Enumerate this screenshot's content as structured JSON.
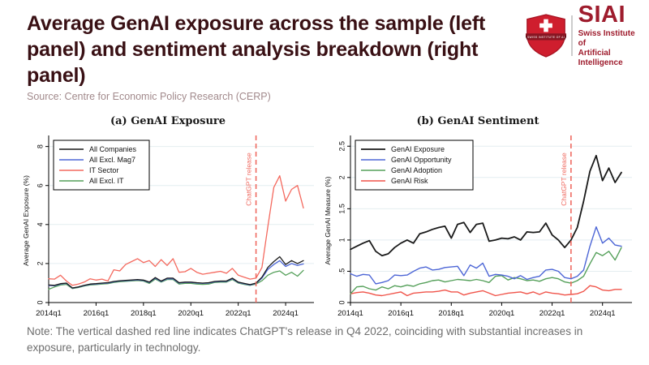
{
  "header": {
    "title": "Average GenAI exposure across the sample (left panel) and sentiment analysis breakdown (right panel)",
    "source": "Source: Centre for Economic Policy Research (CERP)"
  },
  "logo": {
    "acronym": "SIAI",
    "name_line1": "Swiss Institute of",
    "name_line2": "Artificial Intelligence",
    "banner_text": "SWISS INSTITUTE OF AI",
    "shield_color": "#cf1e2e",
    "shield_dark": "#a81423",
    "banner_color": "#871622",
    "text_color": "#9e1c2d"
  },
  "note": "Note:  The vertical dashed red line indicates ChatGPT's release in Q4 2022, coinciding with substantial increases in exposure, particularly in technology.",
  "chart_data": [
    {
      "type": "line",
      "title": "(a) GenAI Exposure",
      "ylabel": "Average GenAI Exposure (%)",
      "ylim": [
        0,
        8.4
      ],
      "grid": true,
      "legend_position": "top-left",
      "n_points": 44,
      "x_start": "2014q1",
      "x_end": "2024q4",
      "x_tick_labels": [
        "2014q1",
        "2016q1",
        "2018q1",
        "2020q1",
        "2022q1",
        "2024q1"
      ],
      "x_tick_indices": [
        0,
        8,
        16,
        24,
        32,
        40
      ],
      "y_ticks": [
        {
          "value": 0,
          "label": "0"
        },
        {
          "value": 2,
          "label": "2"
        },
        {
          "value": 4,
          "label": "4"
        },
        {
          "value": 6,
          "label": "6"
        },
        {
          "value": 8,
          "label": "8"
        }
      ],
      "vline": {
        "index": 35,
        "quarter": "2022q4",
        "label": "ChatGPT release",
        "color": "#ef6a60"
      },
      "series": [
        {
          "name": "All Companies",
          "color": "#1a1a1a",
          "line_width": 1.3,
          "values": [
            0.9,
            0.88,
            0.97,
            1.0,
            0.75,
            0.8,
            0.88,
            0.95,
            0.97,
            1.0,
            1.02,
            1.08,
            1.12,
            1.14,
            1.16,
            1.18,
            1.15,
            1.05,
            1.28,
            1.1,
            1.25,
            1.25,
            1.02,
            1.05,
            1.05,
            1.02,
            1.0,
            1.02,
            1.08,
            1.1,
            1.1,
            1.25,
            1.05,
            0.98,
            0.92,
            1.0,
            1.3,
            1.8,
            2.1,
            2.35,
            1.95,
            2.15,
            2.0,
            2.15
          ]
        },
        {
          "name": "All Excl. Mag7",
          "color": "#4d66d6",
          "line_width": 1.3,
          "values": [
            0.88,
            0.86,
            0.95,
            0.98,
            0.74,
            0.79,
            0.87,
            0.93,
            0.95,
            0.98,
            1.0,
            1.06,
            1.1,
            1.12,
            1.14,
            1.16,
            1.13,
            1.03,
            1.25,
            1.08,
            1.22,
            1.22,
            1.0,
            1.03,
            1.03,
            1.0,
            0.98,
            1.0,
            1.06,
            1.08,
            1.08,
            1.22,
            1.03,
            0.96,
            0.9,
            0.98,
            1.25,
            1.7,
            1.95,
            2.15,
            1.85,
            2.0,
            1.9,
            1.98
          ]
        },
        {
          "name": "IT Sector",
          "color": "#f4695e",
          "line_width": 1.3,
          "values": [
            1.22,
            1.2,
            1.4,
            1.1,
            0.88,
            0.95,
            1.05,
            1.22,
            1.15,
            1.2,
            1.1,
            1.68,
            1.62,
            1.95,
            2.1,
            2.25,
            2.05,
            2.15,
            1.85,
            2.2,
            1.9,
            2.25,
            1.55,
            1.58,
            1.75,
            1.55,
            1.45,
            1.5,
            1.55,
            1.6,
            1.5,
            1.75,
            1.4,
            1.3,
            1.2,
            1.25,
            1.8,
            3.9,
            5.9,
            6.5,
            5.2,
            5.8,
            6.0,
            4.85
          ]
        },
        {
          "name": "All Excl. IT",
          "color": "#55a05a",
          "line_width": 1.3,
          "values": [
            0.68,
            0.8,
            0.9,
            0.93,
            0.72,
            0.77,
            0.85,
            0.9,
            0.92,
            0.95,
            0.97,
            1.03,
            1.07,
            1.09,
            1.11,
            1.13,
            1.1,
            0.98,
            1.2,
            1.05,
            1.18,
            1.18,
            0.95,
            0.98,
            0.98,
            0.95,
            0.93,
            0.95,
            1.03,
            1.05,
            1.05,
            1.18,
            1.0,
            0.93,
            0.88,
            0.95,
            1.12,
            1.4,
            1.55,
            1.62,
            1.4,
            1.55,
            1.35,
            1.65
          ]
        }
      ]
    },
    {
      "type": "line",
      "title": "(b) GenAI Sentiment",
      "ylabel": "Average GenAI Measure (%)",
      "ylim": [
        0,
        2.62
      ],
      "grid": true,
      "legend_position": "top-left",
      "n_points": 44,
      "x_start": "2014q1",
      "x_end": "2024q4",
      "x_tick_labels": [
        "2014q1",
        "2016q1",
        "2018q1",
        "2020q1",
        "2022q1",
        "2024q1"
      ],
      "x_tick_indices": [
        0,
        8,
        16,
        24,
        32,
        40
      ],
      "y_ticks": [
        {
          "value": 0,
          "label": "0"
        },
        {
          "value": 0.5,
          "label": ".5"
        },
        {
          "value": 1,
          "label": "1"
        },
        {
          "value": 1.5,
          "label": "1.5"
        },
        {
          "value": 2,
          "label": "2"
        },
        {
          "value": 2.5,
          "label": "2.5"
        }
      ],
      "vline": {
        "index": 35,
        "quarter": "2022q4",
        "label": "ChatGPT release",
        "color": "#ef6a60"
      },
      "series": [
        {
          "name": "GenAI Exposure",
          "color": "#1a1a1a",
          "line_width": 1.8,
          "values": [
            0.85,
            0.9,
            0.95,
            0.99,
            0.82,
            0.75,
            0.78,
            0.88,
            0.95,
            1.0,
            0.95,
            1.1,
            1.13,
            1.17,
            1.2,
            1.22,
            1.03,
            1.25,
            1.28,
            1.12,
            1.25,
            1.27,
            0.98,
            1.0,
            1.03,
            1.02,
            1.05,
            1.0,
            1.13,
            1.12,
            1.13,
            1.27,
            1.08,
            1.0,
            0.88,
            1.0,
            1.2,
            1.62,
            2.1,
            2.35,
            1.95,
            2.15,
            1.92,
            2.08
          ]
        },
        {
          "name": "GenAI Opportunity",
          "color": "#4d66d6",
          "line_width": 1.4,
          "values": [
            0.46,
            0.42,
            0.45,
            0.44,
            0.3,
            0.32,
            0.35,
            0.44,
            0.43,
            0.44,
            0.5,
            0.55,
            0.57,
            0.52,
            0.53,
            0.56,
            0.57,
            0.58,
            0.43,
            0.6,
            0.55,
            0.63,
            0.42,
            0.45,
            0.44,
            0.42,
            0.38,
            0.43,
            0.37,
            0.4,
            0.42,
            0.52,
            0.53,
            0.5,
            0.4,
            0.38,
            0.42,
            0.52,
            0.9,
            1.21,
            0.95,
            1.03,
            0.92,
            0.9
          ]
        },
        {
          "name": "GenAI Adoption",
          "color": "#55a05a",
          "line_width": 1.4,
          "values": [
            0.14,
            0.25,
            0.26,
            0.22,
            0.2,
            0.25,
            0.22,
            0.27,
            0.25,
            0.28,
            0.26,
            0.3,
            0.32,
            0.35,
            0.36,
            0.33,
            0.35,
            0.37,
            0.36,
            0.35,
            0.37,
            0.35,
            0.32,
            0.42,
            0.43,
            0.36,
            0.4,
            0.38,
            0.35,
            0.36,
            0.34,
            0.38,
            0.4,
            0.38,
            0.33,
            0.31,
            0.35,
            0.42,
            0.62,
            0.8,
            0.75,
            0.82,
            0.68,
            0.88
          ]
        },
        {
          "name": "GenAI Risk",
          "color": "#f0544a",
          "line_width": 1.4,
          "values": [
            0.14,
            0.16,
            0.17,
            0.15,
            0.12,
            0.11,
            0.13,
            0.15,
            0.17,
            0.11,
            0.15,
            0.16,
            0.17,
            0.17,
            0.18,
            0.2,
            0.17,
            0.17,
            0.12,
            0.15,
            0.17,
            0.19,
            0.15,
            0.11,
            0.13,
            0.15,
            0.16,
            0.17,
            0.14,
            0.17,
            0.13,
            0.17,
            0.15,
            0.14,
            0.12,
            0.13,
            0.14,
            0.18,
            0.27,
            0.25,
            0.2,
            0.19,
            0.21,
            0.21
          ]
        }
      ]
    }
  ]
}
